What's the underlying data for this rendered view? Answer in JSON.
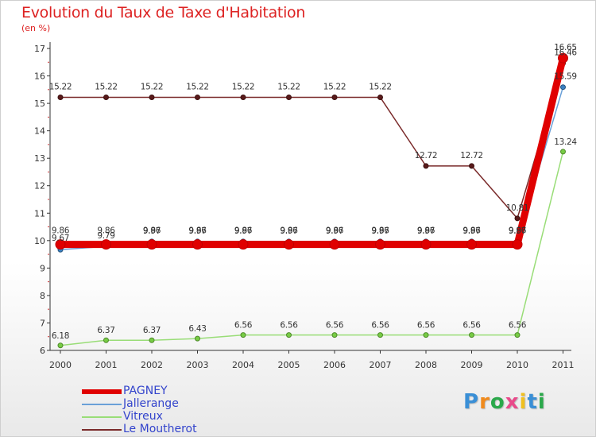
{
  "title": "Evolution du Taux de Taxe d'Habitation",
  "unit_label": "(en %)",
  "brand": {
    "text": "Proxiti",
    "letters": [
      "P",
      "r",
      "o",
      "x",
      "i",
      "t",
      "i"
    ],
    "colors": [
      "#3a8fd6",
      "#f08a1c",
      "#2aa84a",
      "#e84a8a",
      "#f0c020",
      "#3a8fd6",
      "#2aa84a"
    ]
  },
  "chart_data": {
    "type": "line",
    "title": "Evolution du Taux de Taxe d'Habitation",
    "ylabel": "(en %)",
    "xlabel": "",
    "x": [
      "2000",
      "2001",
      "2002",
      "2003",
      "2004",
      "2005",
      "2006",
      "2007",
      "2008",
      "2009",
      "2010",
      "2011"
    ],
    "ylim": [
      6,
      17
    ],
    "yticks": [
      6,
      7,
      8,
      9,
      10,
      11,
      12,
      13,
      14,
      15,
      16,
      17
    ],
    "grid": false,
    "legend_position": "bottom-left",
    "series": [
      {
        "name": "PAGNEY",
        "color": "#e00000",
        "values": [
          9.86,
          9.86,
          9.86,
          9.86,
          9.86,
          9.86,
          9.86,
          9.86,
          9.86,
          9.86,
          9.86,
          16.65
        ],
        "labels": [
          "9.86",
          "9.86",
          "9.86",
          "9.86",
          "9.86",
          "9.86",
          "9.86",
          "9.86",
          "9.86",
          "9.86",
          "9.86",
          "16.65"
        ]
      },
      {
        "name": "Jallerange",
        "color": "#6aa0d8",
        "values": [
          9.67,
          9.79,
          9.97,
          9.97,
          9.97,
          9.97,
          9.97,
          9.97,
          9.97,
          9.97,
          9.97,
          15.59
        ],
        "labels": [
          "9.67",
          "9.79",
          "9.97",
          "9.97",
          "9.97",
          "9.97",
          "9.97",
          "9.97",
          "9.97",
          "9.97",
          "9.97",
          "15.59"
        ]
      },
      {
        "name": "Vitreux",
        "color": "#99dd77",
        "values": [
          6.18,
          6.37,
          6.37,
          6.43,
          6.56,
          6.56,
          6.56,
          6.56,
          6.56,
          6.56,
          6.56,
          13.24
        ],
        "labels": [
          "6.18",
          "6.37",
          "6.37",
          "6.43",
          "6.56",
          "6.56",
          "6.56",
          "6.56",
          "6.56",
          "6.56",
          "6.56",
          "13.24"
        ]
      },
      {
        "name": "Le Moutherot",
        "color": "#7a2a2a",
        "values": [
          15.22,
          15.22,
          15.22,
          15.22,
          15.22,
          15.22,
          15.22,
          15.22,
          12.72,
          12.72,
          10.81,
          16.46
        ],
        "labels": [
          "15.22",
          "15.22",
          "15.22",
          "15.22",
          "15.22",
          "15.22",
          "15.22",
          "15.22",
          "12.72",
          "12.72",
          "10.81",
          "16.46"
        ]
      }
    ]
  }
}
